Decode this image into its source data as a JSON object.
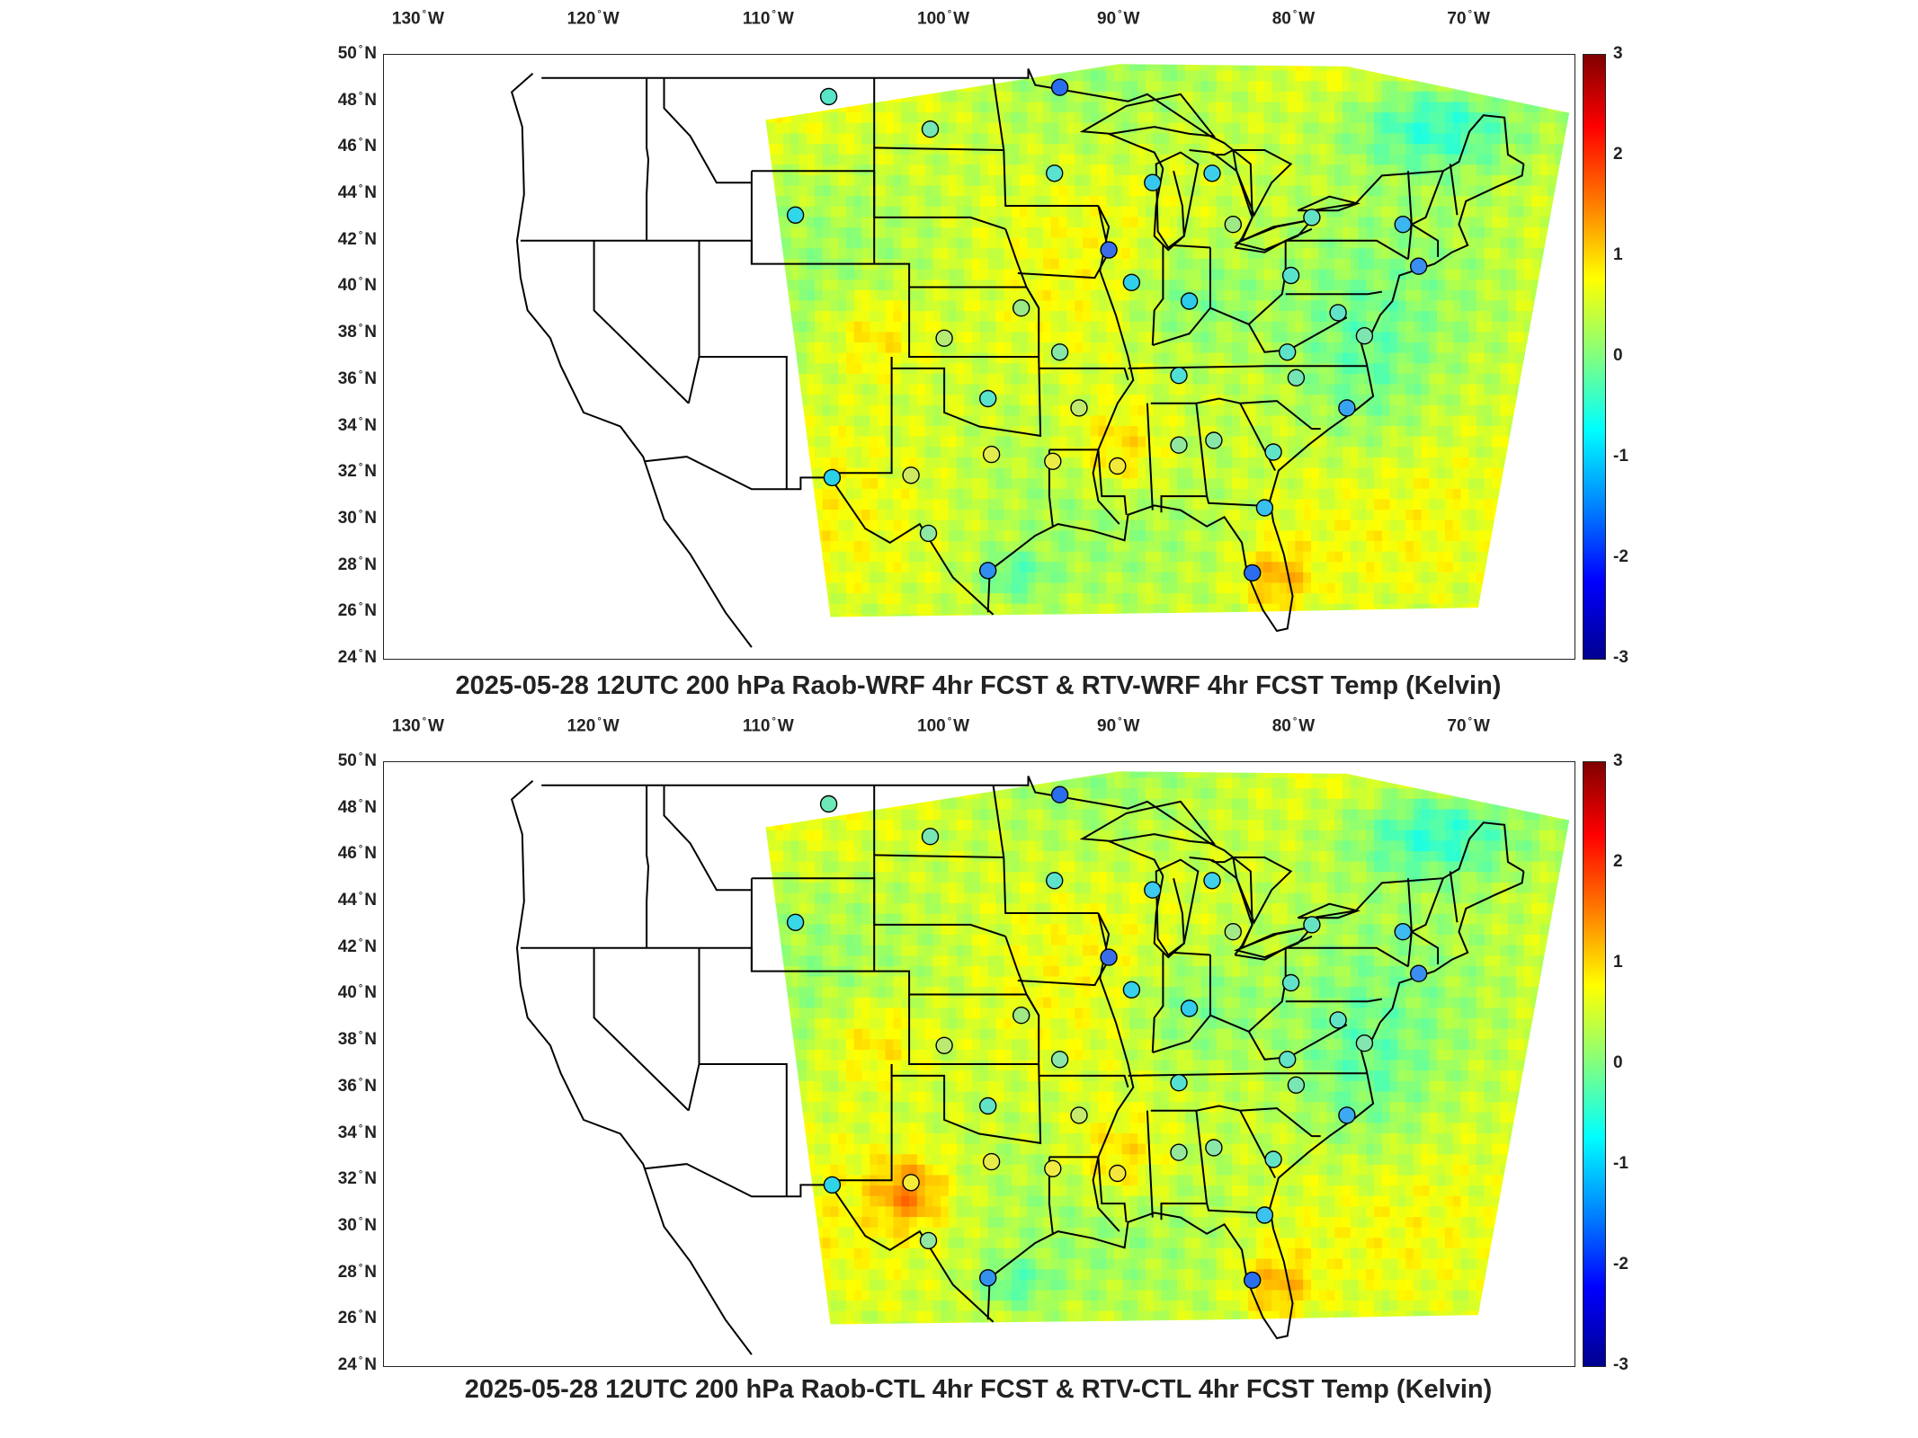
{
  "panels": [
    {
      "id": "top",
      "title": "2025-05-28 12UTC 200 hPa Raob-WRF 4hr FCST & RTV-WRF 4hr FCST Temp (Kelvin)"
    },
    {
      "id": "bottom",
      "title": "2025-05-28 12UTC 200 hPa Raob-CTL 4hr FCST & RTV-CTL 4hr FCST Temp (Kelvin)"
    }
  ],
  "axes": {
    "lon_labels": [
      {
        "num": "130",
        "hemi": "W"
      },
      {
        "num": "120",
        "hemi": "W"
      },
      {
        "num": "110",
        "hemi": "W"
      },
      {
        "num": "100",
        "hemi": "W"
      },
      {
        "num": "90",
        "hemi": "W"
      },
      {
        "num": "80",
        "hemi": "W"
      },
      {
        "num": "70",
        "hemi": "W"
      }
    ],
    "lat_labels": [
      {
        "num": "50",
        "hemi": "N"
      },
      {
        "num": "48",
        "hemi": "N"
      },
      {
        "num": "46",
        "hemi": "N"
      },
      {
        "num": "44",
        "hemi": "N"
      },
      {
        "num": "42",
        "hemi": "N"
      },
      {
        "num": "40",
        "hemi": "N"
      },
      {
        "num": "38",
        "hemi": "N"
      },
      {
        "num": "36",
        "hemi": "N"
      },
      {
        "num": "34",
        "hemi": "N"
      },
      {
        "num": "32",
        "hemi": "N"
      },
      {
        "num": "30",
        "hemi": "N"
      },
      {
        "num": "28",
        "hemi": "N"
      },
      {
        "num": "26",
        "hemi": "N"
      },
      {
        "num": "24",
        "hemi": "N"
      }
    ]
  },
  "colorbar": {
    "ticks": [
      "3",
      "2",
      "1",
      "0",
      "-1",
      "-2",
      "-3"
    ],
    "range": [
      -3,
      3
    ],
    "colormap": "jet",
    "colors": [
      "#00008f",
      "#0000ff",
      "#0080ff",
      "#00ffff",
      "#80ff80",
      "#ffff00",
      "#ff8000",
      "#ff0000",
      "#800000"
    ]
  },
  "stations": [
    {
      "lon": -106.6,
      "lat": 48.2,
      "top": "#59e5c8",
      "bottom": "#6fe8b8"
    },
    {
      "lon": -100.8,
      "lat": 46.8,
      "top": "#75e6b5",
      "bottom": "#78e7b4"
    },
    {
      "lon": -93.4,
      "lat": 48.6,
      "top": "#2a6ef0",
      "bottom": "#2a6ef0"
    },
    {
      "lon": -108.5,
      "lat": 43.1,
      "top": "#2fd7e8",
      "bottom": "#38d8e6"
    },
    {
      "lon": -93.7,
      "lat": 44.9,
      "top": "#58e2cf",
      "bottom": "#5ee3cb"
    },
    {
      "lon": -88.1,
      "lat": 44.5,
      "top": "#34c8ee",
      "bottom": "#3ccbec"
    },
    {
      "lon": -84.7,
      "lat": 44.9,
      "top": "#3bd0ea",
      "bottom": "#3fd2ea"
    },
    {
      "lon": -83.5,
      "lat": 42.7,
      "top": "#9fe886",
      "bottom": "#a3e985"
    },
    {
      "lon": -79.0,
      "lat": 43.0,
      "top": "#62e3c4",
      "bottom": "#66e3c2"
    },
    {
      "lon": -73.8,
      "lat": 42.7,
      "top": "#3bb6f0",
      "bottom": "#3fbcef"
    },
    {
      "lon": -90.6,
      "lat": 41.6,
      "top": "#3a6ee8",
      "bottom": "#3a6ee8"
    },
    {
      "lon": -89.3,
      "lat": 40.2,
      "top": "#2fd0ea",
      "bottom": "#35d2ea"
    },
    {
      "lon": -86.0,
      "lat": 39.4,
      "top": "#2ccbec",
      "bottom": "#33cdec"
    },
    {
      "lon": -80.2,
      "lat": 40.5,
      "top": "#5ae3cc",
      "bottom": "#60e3c9"
    },
    {
      "lon": -72.9,
      "lat": 40.9,
      "top": "#3a8ef0",
      "bottom": "#3a8ef0"
    },
    {
      "lon": -77.5,
      "lat": 38.9,
      "top": "#60e3c7",
      "bottom": "#63e3c6"
    },
    {
      "lon": -76.0,
      "lat": 37.9,
      "top": "#7fe5b0",
      "bottom": "#83e6ae"
    },
    {
      "lon": -95.6,
      "lat": 39.1,
      "top": "#9be887",
      "bottom": "#a0e985"
    },
    {
      "lon": -100.0,
      "lat": 37.8,
      "top": "#b6eb74",
      "bottom": "#bbe972"
    },
    {
      "lon": -93.4,
      "lat": 37.2,
      "top": "#86e7a9",
      "bottom": "#8ae7a7"
    },
    {
      "lon": -80.4,
      "lat": 37.2,
      "top": "#5de3ca",
      "bottom": "#63e3c7"
    },
    {
      "lon": -86.6,
      "lat": 36.2,
      "top": "#4edfd6",
      "bottom": "#55e1d2"
    },
    {
      "lon": -79.9,
      "lat": 36.1,
      "top": "#76e5b5",
      "bottom": "#7ae6b3"
    },
    {
      "lon": -97.5,
      "lat": 35.2,
      "top": "#5ae3cc",
      "bottom": "#62e3c7"
    },
    {
      "lon": -92.3,
      "lat": 34.8,
      "top": "#c0ea6e",
      "bottom": "#c5ea6c"
    },
    {
      "lon": -77.0,
      "lat": 34.8,
      "top": "#38a4f0",
      "bottom": "#3caaf0"
    },
    {
      "lon": -86.6,
      "lat": 33.2,
      "top": "#92e79e",
      "bottom": "#96e79c"
    },
    {
      "lon": -84.6,
      "lat": 33.4,
      "top": "#86e7a9",
      "bottom": "#8ae7a7"
    },
    {
      "lon": -97.3,
      "lat": 32.8,
      "top": "#e3ec4e",
      "bottom": "#e8ec4b"
    },
    {
      "lon": -101.9,
      "lat": 31.9,
      "top": "#cfea62",
      "bottom": "#f5ec3a"
    },
    {
      "lon": -106.4,
      "lat": 31.8,
      "top": "#2ad2e8",
      "bottom": "#30d4e8"
    },
    {
      "lon": -93.8,
      "lat": 32.5,
      "top": "#ecec46",
      "bottom": "#eeec44"
    },
    {
      "lon": -90.1,
      "lat": 32.3,
      "top": "#f2e83c",
      "bottom": "#f4e63b"
    },
    {
      "lon": -81.2,
      "lat": 32.9,
      "top": "#5fe3c9",
      "bottom": "#63e3c6"
    },
    {
      "lon": -100.9,
      "lat": 29.4,
      "top": "#8ee7a3",
      "bottom": "#92e7a1"
    },
    {
      "lon": -97.5,
      "lat": 27.8,
      "top": "#2f8ef0",
      "bottom": "#3392ee"
    },
    {
      "lon": -81.7,
      "lat": 30.5,
      "top": "#38c0ee",
      "bottom": "#3cc2ec"
    },
    {
      "lon": -82.4,
      "lat": 27.7,
      "top": "#2a6ef0",
      "bottom": "#2a6ef0"
    }
  ]
}
